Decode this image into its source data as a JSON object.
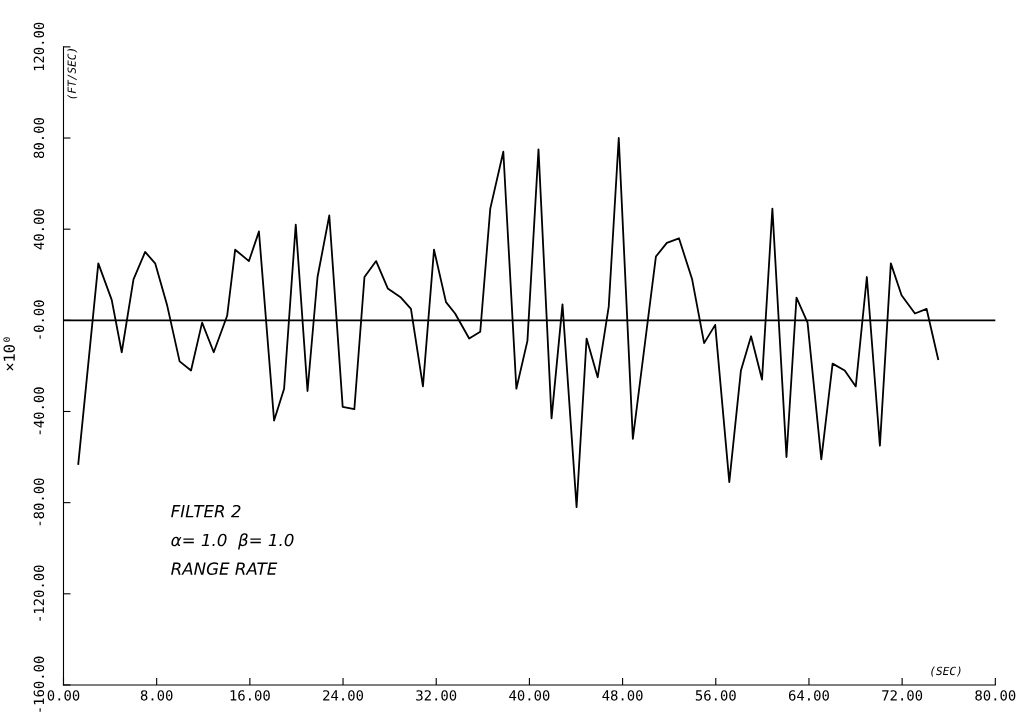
{
  "chart_data": {
    "type": "line",
    "xlabel": "(SEC)",
    "ylabel": "(FT/SEC)",
    "y2label": "×10⁰",
    "annotations": [
      "FILTER 2",
      "α= 1.0  β= 1.0",
      "RANGE RATE"
    ],
    "x": [
      1.27,
      2.99,
      4.14,
      5.0,
      6.01,
      7.01,
      7.87,
      8.88,
      9.97,
      10.95,
      11.9,
      12.9,
      14.05,
      14.74,
      15.92,
      16.78,
      18.08,
      18.94,
      19.94,
      20.95,
      21.81,
      22.82,
      23.97,
      24.97,
      25.84,
      26.84,
      27.84,
      28.97,
      29.83,
      30.86,
      31.81,
      32.84,
      33.62,
      34.83,
      35.78,
      36.64,
      37.76,
      38.88,
      39.83,
      40.78,
      41.9,
      42.84,
      44.05,
      44.91,
      45.86,
      46.81,
      47.67,
      48.88,
      50.86,
      51.8,
      52.84,
      53.97,
      55.0,
      55.95,
      57.16,
      58.16,
      59.03,
      59.97,
      60.86,
      62.07,
      62.93,
      63.88,
      65.06,
      66.03,
      67.07,
      68.02,
      68.97,
      70.09,
      71.03,
      71.95,
      73.1,
      74.1,
      75.09
    ],
    "series": [
      {
        "color": "#000000",
        "values": [
          -63,
          25,
          9,
          -14,
          18,
          30,
          25,
          7,
          -18,
          -22,
          -1,
          -14,
          2,
          31,
          26,
          39,
          -44,
          -30,
          42,
          -31,
          19,
          46,
          -38,
          -39,
          19,
          26,
          14,
          10,
          5,
          -29,
          31,
          8,
          3,
          -8,
          -5,
          49,
          74,
          -30,
          -9,
          75,
          -43,
          7,
          -82,
          -8,
          -25,
          6,
          80,
          -52,
          28,
          34,
          36,
          18,
          -10,
          -2,
          -71,
          -22,
          -7,
          -26,
          49,
          -60,
          10,
          -1,
          -61,
          -19,
          -22,
          -29,
          19,
          -55,
          25,
          11,
          3,
          5,
          -17
        ]
      }
    ],
    "ref_lines": [
      {
        "axis": "y",
        "value": 0,
        "color": "#000000"
      }
    ],
    "xlim": [
      0,
      80
    ],
    "ylim": [
      -160,
      120
    ],
    "xticks": [
      {
        "value": 0,
        "label": "0.00"
      },
      {
        "value": 8,
        "label": "8.00"
      },
      {
        "value": 16,
        "label": "16.00"
      },
      {
        "value": 24,
        "label": "24.00"
      },
      {
        "value": 32,
        "label": "32.00"
      },
      {
        "value": 40,
        "label": "40.00"
      },
      {
        "value": 48,
        "label": "48.00"
      },
      {
        "value": 56,
        "label": "56.00"
      },
      {
        "value": 64,
        "label": "64.00"
      },
      {
        "value": 72,
        "label": "72.00"
      },
      {
        "value": 80,
        "label": "80.00"
      }
    ],
    "yticks": [
      {
        "value": -160,
        "label": "-160.00"
      },
      {
        "value": -120,
        "label": "-120.00"
      },
      {
        "value": -80,
        "label": "-80.00"
      },
      {
        "value": -40,
        "label": "-40.00"
      },
      {
        "value": 0,
        "label": "-0.00"
      },
      {
        "value": 40,
        "label": "40.00"
      },
      {
        "value": 80,
        "label": "80.00"
      },
      {
        "value": 120,
        "label": "120.00"
      }
    ],
    "grid": false,
    "legend": false,
    "marker": "none",
    "line_style": "solid"
  }
}
